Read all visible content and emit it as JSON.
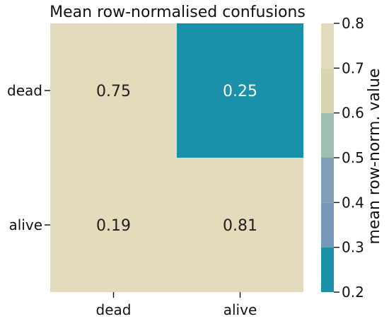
{
  "chart_data": {
    "type": "heatmap",
    "title": "Mean row-normalised confusions",
    "rows": [
      "dead",
      "alive"
    ],
    "cols": [
      "dead",
      "alive"
    ],
    "values": [
      [
        0.75,
        0.25
      ],
      [
        0.19,
        0.81
      ]
    ],
    "cell_labels": [
      [
        "0.75",
        "0.25"
      ],
      [
        "0.19",
        "0.81"
      ]
    ],
    "colorbar": {
      "label": "mean row-norm. value",
      "ticks": [
        0.2,
        0.3,
        0.4,
        0.5,
        0.6,
        0.7,
        0.8
      ],
      "tick_labels": [
        "0.2",
        "0.3",
        "0.4",
        "0.5",
        "0.6",
        "0.7",
        "0.8"
      ],
      "range": [
        0.2,
        0.8
      ],
      "bands": [
        {
          "from": 0.2,
          "to": 0.3,
          "color": "#1a91a8"
        },
        {
          "from": 0.3,
          "to": 0.4,
          "color": "#7599b6"
        },
        {
          "from": 0.4,
          "to": 0.5,
          "color": "#7fa0b8"
        },
        {
          "from": 0.5,
          "to": 0.6,
          "color": "#9ebfb0"
        },
        {
          "from": 0.6,
          "to": 0.7,
          "color": "#d5d6ad"
        },
        {
          "from": 0.7,
          "to": 0.8,
          "color": "#e3dbbb"
        }
      ]
    },
    "colors": {
      "dark_text": "#1f1f1f",
      "light_text": "#ffffff",
      "axis": "#111111"
    }
  }
}
